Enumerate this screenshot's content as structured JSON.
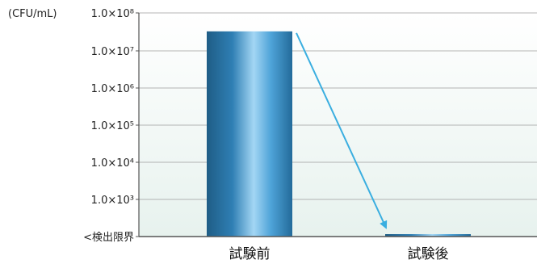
{
  "chart_data": {
    "type": "bar",
    "categories": [
      "試験前",
      "試験後"
    ],
    "values": [
      32000000.0,
      1
    ],
    "y_scale": "log",
    "ylim": [
      "<検出限界",
      "1.0×10⁸"
    ],
    "y_tick_labels": [
      "<検出限界",
      "1.0×10³",
      "1.0×10⁴",
      "1.0×10⁵",
      "1.0×10⁶",
      "1.0×10⁷",
      "1.0×10⁸"
    ],
    "ylabel": "(CFU/mL)",
    "xlabel": "",
    "title": "",
    "grid": true,
    "annotation": "arrow from 試験前 bar top down to 試験後 bar",
    "colors": {
      "bar_dark": "#1f5d86",
      "bar_mid": "#3f93cc",
      "bar_light": "#9fd3f3",
      "arrow": "#3aaee0",
      "grid": "#9c9c9c",
      "axis": "#555555",
      "plot_bg_top": "#ffffff",
      "plot_bg_bottom": "#e7f2ee"
    }
  }
}
